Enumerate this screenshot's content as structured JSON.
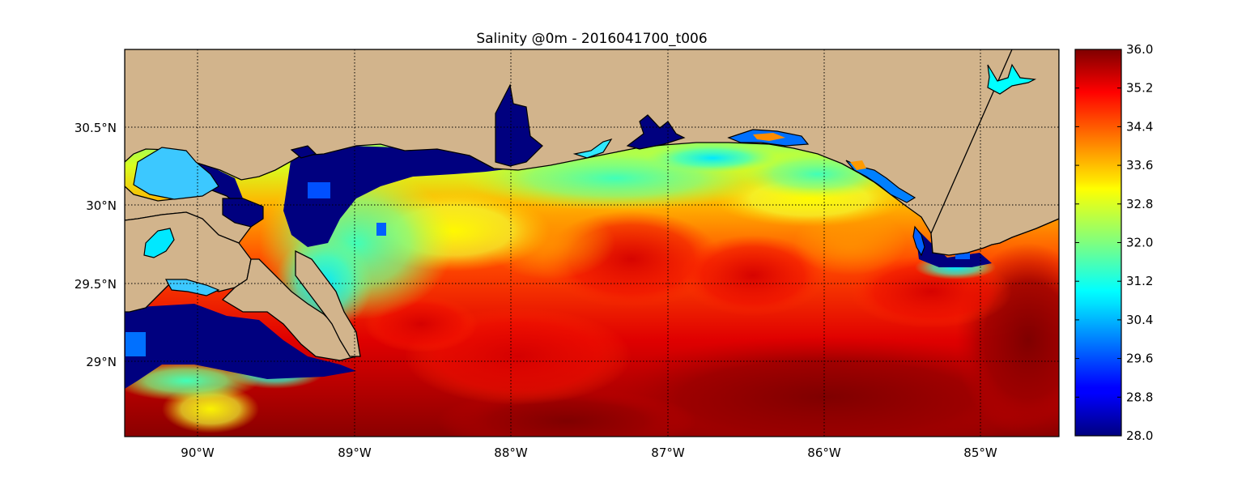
{
  "map": {
    "title": "Salinity @0m - 2016041700_t006",
    "variable": "Salinity",
    "depth": "0m",
    "timestamp": "2016041700_t006",
    "region": "Northern Gulf of Mexico (Mississippi Sound to Florida Panhandle)",
    "land_color": "#d2b48c",
    "gridlines": true,
    "longitude_labels": [
      "90°W",
      "89°W",
      "88°W",
      "87°W",
      "86°W",
      "85°W"
    ],
    "latitude_labels": [
      "30.5°N",
      "30°N",
      "29.5°N",
      "29°N"
    ]
  },
  "colorbar": {
    "colormap": "jet",
    "min": 28.0,
    "max": 36.0,
    "tick_labels": [
      "36.0",
      "35.2",
      "34.4",
      "33.6",
      "32.8",
      "32.0",
      "31.2",
      "30.4",
      "29.6",
      "28.8",
      "28.0"
    ]
  },
  "chart_data": {
    "type": "heatmap",
    "title": "Salinity @0m - 2016041700_t006",
    "xlabel": "",
    "ylabel": "",
    "xlim": [
      -90.5,
      -84.5
    ],
    "ylim": [
      28.5,
      31.0
    ],
    "xticks": [
      "90°W",
      "89°W",
      "88°W",
      "87°W",
      "86°W",
      "85°W"
    ],
    "yticks": [
      "30.5°N",
      "30°N",
      "29.5°N",
      "29°N"
    ],
    "value_range": [
      28.0,
      36.0
    ],
    "grid": true
  }
}
